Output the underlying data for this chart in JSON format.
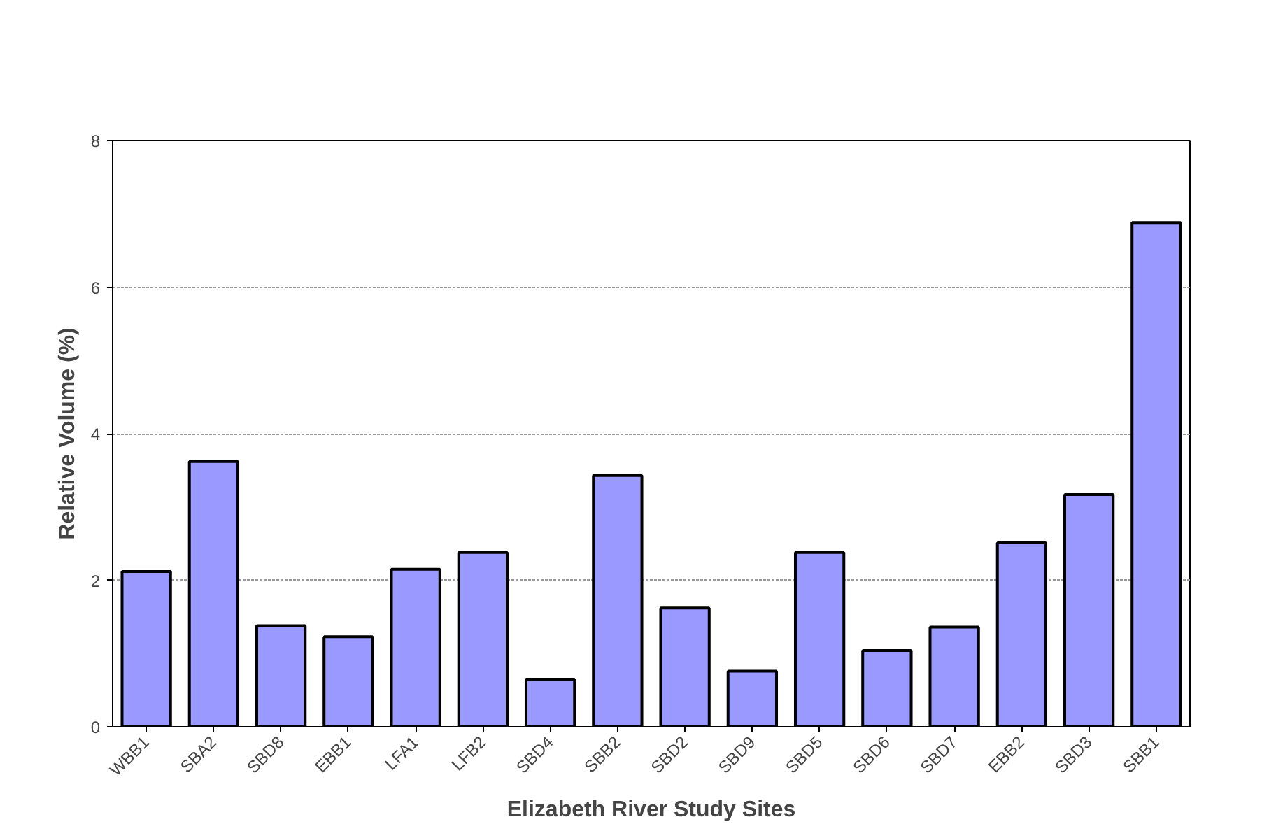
{
  "chart_data": {
    "type": "bar",
    "xlabel": "Elizabeth River Study Sites",
    "ylabel": "Relative Volume (%)",
    "categories": [
      "WBB1",
      "SBA2",
      "SBD8",
      "EBB1",
      "LFA1",
      "LFB2",
      "SBD4",
      "SBB2",
      "SBD2",
      "SBD9",
      "SBD5",
      "SBD6",
      "SBD7",
      "EBB2",
      "SBD3",
      "SBB1"
    ],
    "values": [
      2.12,
      3.62,
      1.38,
      1.23,
      2.15,
      2.38,
      0.65,
      3.43,
      1.62,
      0.76,
      2.38,
      1.04,
      1.36,
      2.51,
      3.17,
      6.88
    ],
    "color": "#9999ff",
    "ylim": [
      0,
      8
    ],
    "yticks": [
      0,
      2,
      4,
      6,
      8
    ],
    "grid": "y"
  }
}
